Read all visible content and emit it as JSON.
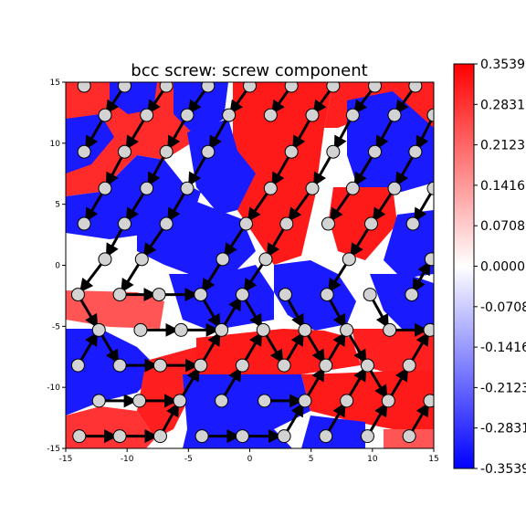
{
  "chart_data": {
    "type": "heatmap",
    "title": "bcc screw: screw component",
    "xlabel": "",
    "ylabel": "",
    "xlim": [
      -15,
      15
    ],
    "ylim": [
      -15,
      15
    ],
    "x_ticks": [
      "-15",
      "-10",
      "-5",
      "0",
      "5",
      "10",
      "15"
    ],
    "y_ticks": [
      "15",
      "10",
      "5",
      "0",
      "-5",
      "-10",
      "-15"
    ],
    "colormap": "bwr",
    "colorbar": {
      "vmin": -0.3539,
      "vmax": 0.3539,
      "ticks": [
        "0.3539",
        "0.2831",
        "0.2123",
        "0.1416",
        "0.0708",
        "0.0000",
        "-0.0708",
        "-0.1416",
        "-0.2123",
        "-0.2831",
        "-0.3539"
      ]
    },
    "colors": {
      "positive": "#ff0000",
      "zero": "#ffffff",
      "negative": "#0000ff",
      "atom": "#d3d3d3"
    },
    "atoms_description": "gray circles mark atom positions on a bcc lattice; black arrows show differential displacement between neighbors",
    "atoms": [
      [
        -13.5,
        14.7
      ],
      [
        -10.2,
        14.7
      ],
      [
        -6.8,
        14.7
      ],
      [
        -3.4,
        14.7
      ],
      [
        0.0,
        14.7
      ],
      [
        3.4,
        14.7
      ],
      [
        6.8,
        14.7
      ],
      [
        10.2,
        14.7
      ],
      [
        13.5,
        14.7
      ],
      [
        -11.8,
        12.3
      ],
      [
        -8.4,
        12.3
      ],
      [
        -5.1,
        12.3
      ],
      [
        -1.7,
        12.3
      ],
      [
        1.7,
        12.3
      ],
      [
        5.1,
        12.3
      ],
      [
        8.4,
        12.3
      ],
      [
        11.8,
        12.3
      ],
      [
        15.0,
        12.3
      ],
      [
        -13.5,
        9.3
      ],
      [
        -10.2,
        9.3
      ],
      [
        -6.8,
        9.3
      ],
      [
        -3.4,
        9.3
      ],
      [
        3.4,
        9.3
      ],
      [
        6.8,
        9.3
      ],
      [
        10.2,
        9.3
      ],
      [
        13.5,
        9.3
      ],
      [
        -11.8,
        6.3
      ],
      [
        -8.4,
        6.3
      ],
      [
        -5.1,
        6.3
      ],
      [
        1.7,
        6.3
      ],
      [
        5.1,
        6.3
      ],
      [
        8.4,
        6.3
      ],
      [
        11.8,
        6.3
      ],
      [
        15.0,
        6.3
      ],
      [
        -13.5,
        3.4
      ],
      [
        -10.2,
        3.4
      ],
      [
        -6.8,
        3.4
      ],
      [
        -0.3,
        3.4
      ],
      [
        3.0,
        3.4
      ],
      [
        6.4,
        3.4
      ],
      [
        9.9,
        3.4
      ],
      [
        13.3,
        3.4
      ],
      [
        -11.8,
        0.5
      ],
      [
        -8.8,
        0.5
      ],
      [
        -2.2,
        0.5
      ],
      [
        1.3,
        0.5
      ],
      [
        8.1,
        0.5
      ],
      [
        14.8,
        0.5
      ],
      [
        -14.0,
        -2.4
      ],
      [
        -10.6,
        -2.4
      ],
      [
        -7.4,
        -2.4
      ],
      [
        -4.0,
        -2.4
      ],
      [
        -0.6,
        -2.4
      ],
      [
        2.9,
        -2.4
      ],
      [
        6.3,
        -2.4
      ],
      [
        9.8,
        -2.4
      ],
      [
        13.2,
        -2.4
      ],
      [
        -12.3,
        -5.3
      ],
      [
        -8.9,
        -5.3
      ],
      [
        -5.6,
        -5.3
      ],
      [
        -2.3,
        -5.3
      ],
      [
        1.1,
        -5.3
      ],
      [
        4.5,
        -5.3
      ],
      [
        7.9,
        -5.3
      ],
      [
        11.4,
        -5.3
      ],
      [
        14.7,
        -5.3
      ],
      [
        -14.0,
        -8.2
      ],
      [
        -10.6,
        -8.2
      ],
      [
        -7.3,
        -8.2
      ],
      [
        -4.0,
        -8.2
      ],
      [
        -0.6,
        -8.2
      ],
      [
        2.8,
        -8.2
      ],
      [
        6.2,
        -8.2
      ],
      [
        9.6,
        -8.2
      ],
      [
        13.0,
        -8.2
      ],
      [
        -12.3,
        -11.1
      ],
      [
        -9.0,
        -11.1
      ],
      [
        -5.7,
        -11.1
      ],
      [
        -2.3,
        -11.1
      ],
      [
        1.2,
        -11.1
      ],
      [
        4.5,
        -11.1
      ],
      [
        7.9,
        -11.1
      ],
      [
        11.3,
        -11.1
      ],
      [
        14.7,
        -11.1
      ],
      [
        -13.9,
        -14.0
      ],
      [
        -10.6,
        -14.0
      ],
      [
        -7.3,
        -14.0
      ],
      [
        -3.9,
        -14.0
      ],
      [
        -0.6,
        -14.0
      ],
      [
        2.8,
        -14.0
      ],
      [
        6.2,
        -14.0
      ],
      [
        9.6,
        -14.0
      ],
      [
        13.0,
        -14.0
      ]
    ]
  }
}
